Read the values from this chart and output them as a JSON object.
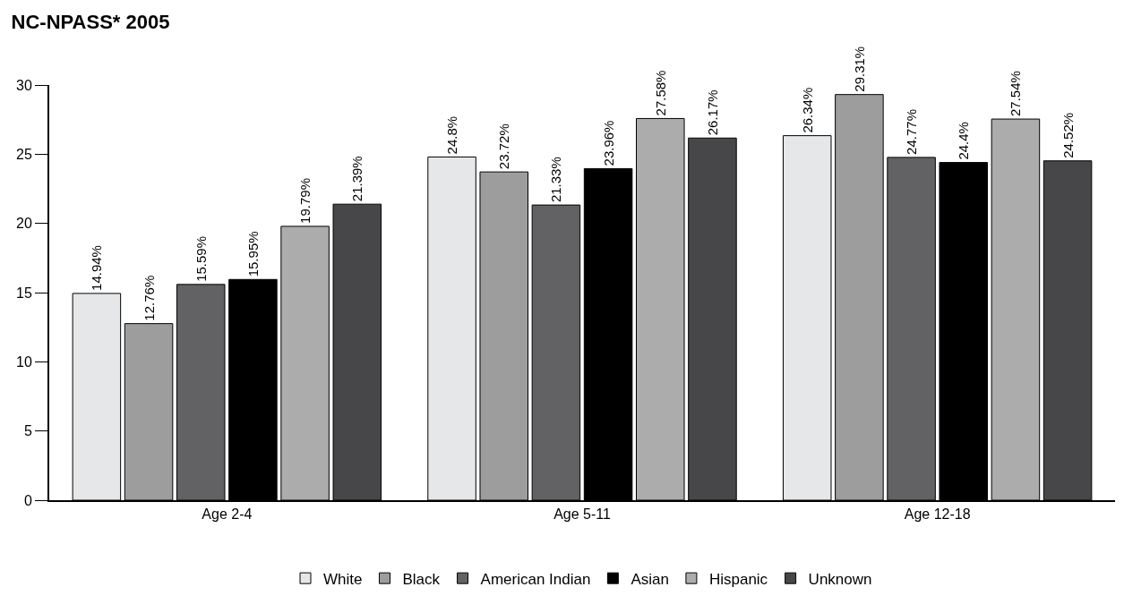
{
  "chart_data": {
    "type": "bar",
    "title": "NC-NPASS* 2005",
    "categories": [
      "Age 2-4",
      "Age 5-11",
      "Age 12-18"
    ],
    "series": [
      {
        "name": "White",
        "color": "#e6e7e8",
        "values": [
          14.94,
          24.8,
          26.34
        ],
        "value_labels": [
          "14.94%",
          "24.8%",
          "26.34%"
        ]
      },
      {
        "name": "Black",
        "color": "#9d9d9e",
        "values": [
          12.76,
          23.72,
          29.31
        ],
        "value_labels": [
          "12.76%",
          "23.72%",
          "29.31%"
        ]
      },
      {
        "name": "American Indian",
        "color": "#626264",
        "values": [
          15.59,
          21.33,
          24.77
        ],
        "value_labels": [
          "15.59%",
          "21.33%",
          "24.77%"
        ]
      },
      {
        "name": "Asian",
        "color": "#000000",
        "values": [
          15.95,
          23.96,
          24.4
        ],
        "value_labels": [
          "15.95%",
          "23.96%",
          "24.4%"
        ]
      },
      {
        "name": "Hispanic",
        "color": "#acacad",
        "values": [
          19.79,
          27.58,
          27.54
        ],
        "value_labels": [
          "19.79%",
          "27.58%",
          "27.54%"
        ]
      },
      {
        "name": "Unknown",
        "color": "#474749",
        "values": [
          21.39,
          26.17,
          24.52
        ],
        "value_labels": [
          "21.39%",
          "26.17%",
          "24.52%"
        ]
      }
    ],
    "ylim": [
      0,
      30
    ],
    "yticks": [
      0,
      5,
      10,
      15,
      20,
      25,
      30
    ],
    "legend": "bottom"
  }
}
